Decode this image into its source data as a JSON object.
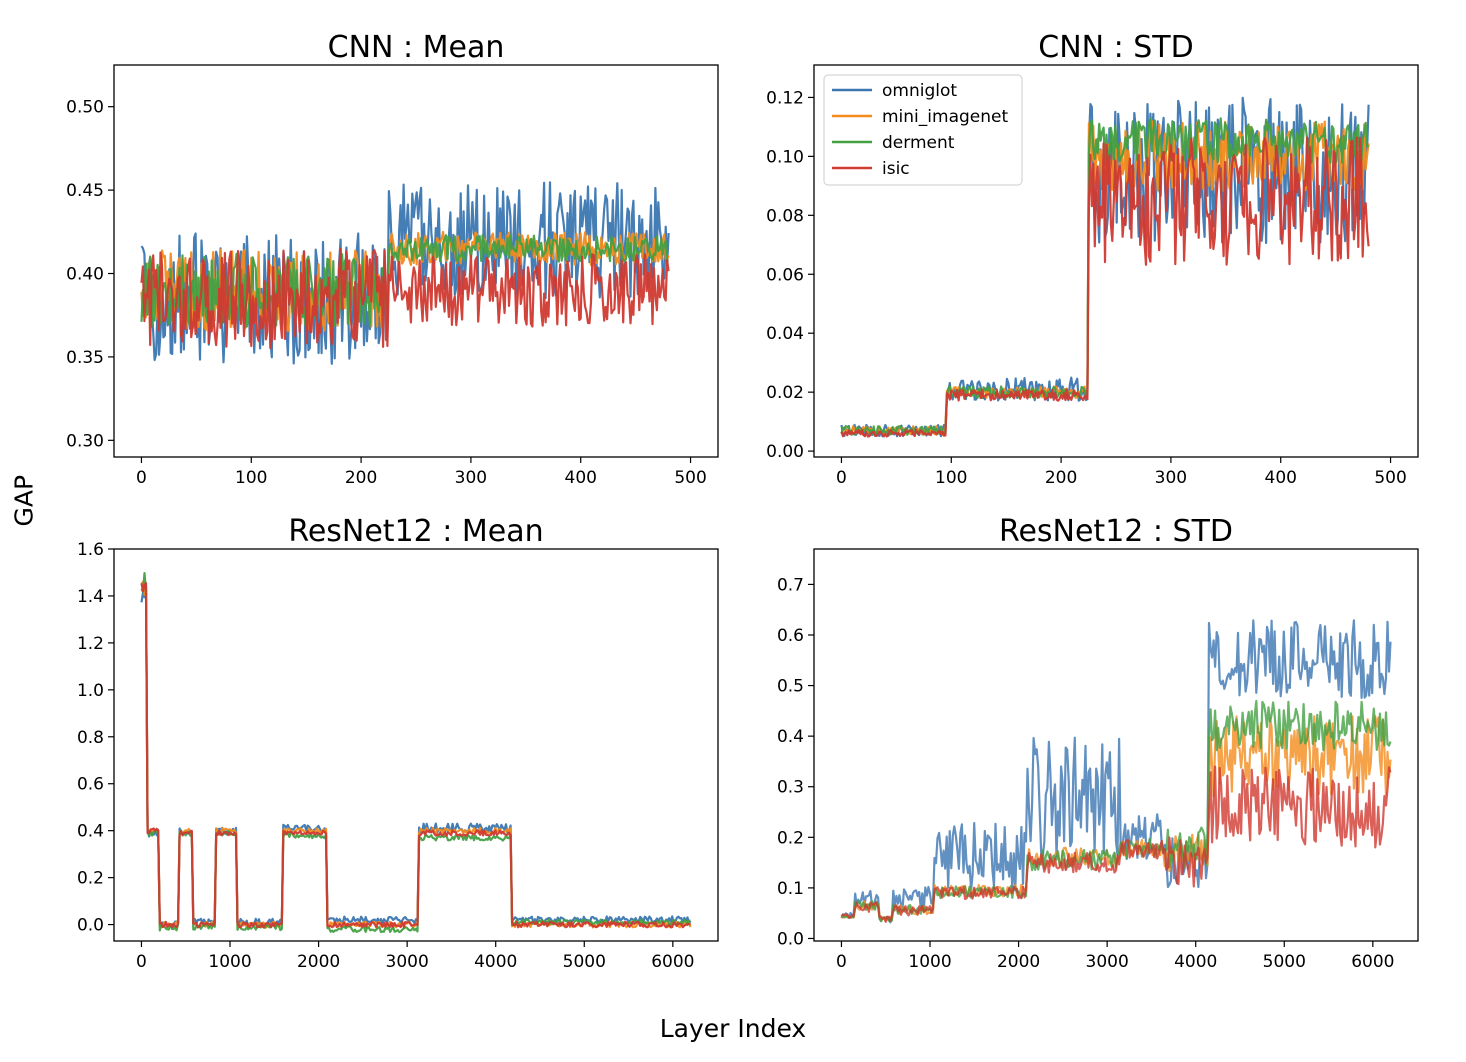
{
  "figure": {
    "ylabel": "GAP",
    "xlabel": "Layer Index"
  },
  "colors": {
    "omniglot": "#3b76b1",
    "mini_imagenet": "#f28b1c",
    "derment": "#43a043",
    "isic": "#d03a30"
  },
  "legend": [
    {
      "name": "omniglot",
      "color": "#3b76b1"
    },
    {
      "name": "mini_imagenet",
      "color": "#f28b1c"
    },
    {
      "name": "derment",
      "color": "#43a043"
    },
    {
      "name": "isic",
      "color": "#d03a30"
    }
  ],
  "chart_data": [
    {
      "type": "line",
      "title": "CNN : Mean",
      "xlim": [
        -25,
        525
      ],
      "ylim": [
        0.29,
        0.525
      ],
      "xticks": [
        0,
        100,
        200,
        300,
        400,
        500
      ],
      "yticks": [
        "0.30",
        "0.35",
        "0.40",
        "0.45",
        "0.50"
      ],
      "ytick_values": [
        0.3,
        0.35,
        0.4,
        0.45,
        0.5
      ],
      "x_max_point": 480,
      "segments": [
        {
          "x_end": 225,
          "means": {
            "omniglot": 0.385,
            "mini_imagenet": 0.39,
            "derment": 0.39,
            "isic": 0.385
          },
          "noise": {
            "omniglot": 0.04,
            "mini_imagenet": 0.025,
            "derment": 0.022,
            "isic": 0.03
          }
        },
        {
          "x_end": 480,
          "means": {
            "omniglot": 0.42,
            "mini_imagenet": 0.415,
            "derment": 0.415,
            "isic": 0.39
          },
          "noise": {
            "omniglot": 0.035,
            "mini_imagenet": 0.01,
            "derment": 0.008,
            "isic": 0.022
          }
        }
      ],
      "legend": false
    },
    {
      "type": "line",
      "title": "CNN : STD",
      "xlim": [
        -25,
        525
      ],
      "ylim": [
        -0.002,
        0.131
      ],
      "xticks": [
        0,
        100,
        200,
        300,
        400,
        500
      ],
      "yticks": [
        "0.00",
        "0.02",
        "0.04",
        "0.06",
        "0.08",
        "0.10",
        "0.12"
      ],
      "ytick_values": [
        0.0,
        0.02,
        0.04,
        0.06,
        0.08,
        0.1,
        0.12
      ],
      "x_max_point": 480,
      "segments": [
        {
          "x_end": 95,
          "means": {
            "omniglot": 0.007,
            "mini_imagenet": 0.007,
            "derment": 0.007,
            "isic": 0.006
          },
          "noise": {
            "omniglot": 0.002,
            "mini_imagenet": 0.0015,
            "derment": 0.0015,
            "isic": 0.0012
          }
        },
        {
          "x_end": 225,
          "means": {
            "omniglot": 0.021,
            "mini_imagenet": 0.02,
            "derment": 0.02,
            "isic": 0.019
          },
          "noise": {
            "omniglot": 0.004,
            "mini_imagenet": 0.002,
            "derment": 0.002,
            "isic": 0.002
          }
        },
        {
          "x_end": 480,
          "means": {
            "omniglot": 0.095,
            "mini_imagenet": 0.1,
            "derment": 0.105,
            "isic": 0.085
          },
          "noise": {
            "omniglot": 0.025,
            "mini_imagenet": 0.012,
            "derment": 0.008,
            "isic": 0.022
          }
        }
      ],
      "legend": true,
      "legend_position": "top-left"
    },
    {
      "type": "line",
      "title": "ResNet12 : Mean",
      "xlim": [
        -310,
        6510
      ],
      "ylim": [
        -0.07,
        1.6
      ],
      "xticks": [
        0,
        1000,
        2000,
        3000,
        4000,
        5000,
        6000
      ],
      "yticks": [
        "0.0",
        "0.2",
        "0.4",
        "0.6",
        "0.8",
        "1.0",
        "1.2",
        "1.4",
        "1.6"
      ],
      "ytick_values": [
        0.0,
        0.2,
        0.4,
        0.6,
        0.8,
        1.0,
        1.2,
        1.4,
        1.6
      ],
      "x_max_point": 6200,
      "segments": [
        {
          "x_end": 60,
          "means": {
            "omniglot": 1.42,
            "mini_imagenet": 1.44,
            "derment": 1.46,
            "isic": 1.43
          },
          "noise": {
            "omniglot": 0.05,
            "mini_imagenet": 0.04,
            "derment": 0.05,
            "isic": 0.04
          }
        },
        {
          "x_end": 200,
          "means": {
            "omniglot": 0.39,
            "mini_imagenet": 0.4,
            "derment": 0.39,
            "isic": 0.4
          },
          "noise": {
            "omniglot": 0.015,
            "mini_imagenet": 0.01,
            "derment": 0.012,
            "isic": 0.01
          }
        },
        {
          "x_end": 430,
          "means": {
            "omniglot": 0.0,
            "mini_imagenet": 0.0,
            "derment": -0.01,
            "isic": 0.0
          },
          "noise": {
            "omniglot": 0.015,
            "mini_imagenet": 0.012,
            "derment": 0.015,
            "isic": 0.012
          }
        },
        {
          "x_end": 580,
          "means": {
            "omniglot": 0.4,
            "mini_imagenet": 0.4,
            "derment": 0.39,
            "isic": 0.39
          },
          "noise": {
            "omniglot": 0.015,
            "mini_imagenet": 0.01,
            "derment": 0.012,
            "isic": 0.01
          }
        },
        {
          "x_end": 830,
          "means": {
            "omniglot": 0.01,
            "mini_imagenet": 0.0,
            "derment": -0.01,
            "isic": 0.0
          },
          "noise": {
            "omniglot": 0.015,
            "mini_imagenet": 0.012,
            "derment": 0.015,
            "isic": 0.012
          }
        },
        {
          "x_end": 1080,
          "means": {
            "omniglot": 0.4,
            "mini_imagenet": 0.4,
            "derment": 0.39,
            "isic": 0.39
          },
          "noise": {
            "omniglot": 0.015,
            "mini_imagenet": 0.01,
            "derment": 0.012,
            "isic": 0.01
          }
        },
        {
          "x_end": 1600,
          "means": {
            "omniglot": 0.01,
            "mini_imagenet": 0.0,
            "derment": -0.01,
            "isic": 0.0
          },
          "noise": {
            "omniglot": 0.015,
            "mini_imagenet": 0.012,
            "derment": 0.015,
            "isic": 0.012
          }
        },
        {
          "x_end": 2100,
          "means": {
            "omniglot": 0.41,
            "mini_imagenet": 0.4,
            "derment": 0.38,
            "isic": 0.39
          },
          "noise": {
            "omniglot": 0.015,
            "mini_imagenet": 0.01,
            "derment": 0.012,
            "isic": 0.01
          }
        },
        {
          "x_end": 3120,
          "means": {
            "omniglot": 0.02,
            "mini_imagenet": 0.0,
            "derment": -0.02,
            "isic": 0.0
          },
          "noise": {
            "omniglot": 0.015,
            "mini_imagenet": 0.012,
            "derment": 0.012,
            "isic": 0.012
          }
        },
        {
          "x_end": 4170,
          "means": {
            "omniglot": 0.41,
            "mini_imagenet": 0.4,
            "derment": 0.37,
            "isic": 0.39
          },
          "noise": {
            "omniglot": 0.02,
            "mini_imagenet": 0.012,
            "derment": 0.012,
            "isic": 0.012
          }
        },
        {
          "x_end": 6200,
          "means": {
            "omniglot": 0.02,
            "mini_imagenet": 0.0,
            "derment": 0.01,
            "isic": 0.0
          },
          "noise": {
            "omniglot": 0.015,
            "mini_imagenet": 0.012,
            "derment": 0.012,
            "isic": 0.012
          }
        }
      ],
      "legend": false
    },
    {
      "type": "line",
      "title": "ResNet12 : STD",
      "xlim": [
        -310,
        6510
      ],
      "ylim": [
        -0.005,
        0.77
      ],
      "xticks": [
        0,
        1000,
        2000,
        3000,
        4000,
        5000,
        6000
      ],
      "yticks": [
        "0.0",
        "0.1",
        "0.2",
        "0.3",
        "0.4",
        "0.5",
        "0.6",
        "0.7"
      ],
      "ytick_values": [
        0.0,
        0.1,
        0.2,
        0.3,
        0.4,
        0.5,
        0.6,
        0.7
      ],
      "x_max_point": 6200,
      "segments": [
        {
          "x_end": 150,
          "means": {
            "omniglot": 0.045,
            "mini_imagenet": 0.045,
            "derment": 0.045,
            "isic": 0.044
          },
          "noise": {
            "omniglot": 0.006,
            "mini_imagenet": 0.004,
            "derment": 0.004,
            "isic": 0.004
          }
        },
        {
          "x_end": 430,
          "means": {
            "omniglot": 0.075,
            "mini_imagenet": 0.065,
            "derment": 0.065,
            "isic": 0.062
          },
          "noise": {
            "omniglot": 0.02,
            "mini_imagenet": 0.01,
            "derment": 0.01,
            "isic": 0.01
          }
        },
        {
          "x_end": 580,
          "means": {
            "omniglot": 0.04,
            "mini_imagenet": 0.04,
            "derment": 0.04,
            "isic": 0.038
          },
          "noise": {
            "omniglot": 0.008,
            "mini_imagenet": 0.006,
            "derment": 0.006,
            "isic": 0.006
          }
        },
        {
          "x_end": 1050,
          "means": {
            "omniglot": 0.08,
            "mini_imagenet": 0.058,
            "derment": 0.058,
            "isic": 0.055
          },
          "noise": {
            "omniglot": 0.025,
            "mini_imagenet": 0.01,
            "derment": 0.01,
            "isic": 0.01
          }
        },
        {
          "x_end": 2100,
          "means": {
            "omniglot": 0.16,
            "mini_imagenet": 0.095,
            "derment": 0.092,
            "isic": 0.09
          },
          "noise": {
            "omniglot": 0.07,
            "mini_imagenet": 0.012,
            "derment": 0.012,
            "isic": 0.012
          }
        },
        {
          "x_end": 3150,
          "means": {
            "omniglot": 0.28,
            "mini_imagenet": 0.16,
            "derment": 0.155,
            "isic": 0.15
          },
          "noise": {
            "omniglot": 0.12,
            "mini_imagenet": 0.02,
            "derment": 0.02,
            "isic": 0.02
          }
        },
        {
          "x_end": 3650,
          "means": {
            "omniglot": 0.2,
            "mini_imagenet": 0.18,
            "derment": 0.178,
            "isic": 0.175
          },
          "noise": {
            "omniglot": 0.05,
            "mini_imagenet": 0.02,
            "derment": 0.02,
            "isic": 0.02
          }
        },
        {
          "x_end": 4150,
          "means": {
            "omniglot": 0.15,
            "mini_imagenet": 0.17,
            "derment": 0.18,
            "isic": 0.15
          },
          "noise": {
            "omniglot": 0.05,
            "mini_imagenet": 0.04,
            "derment": 0.04,
            "isic": 0.05
          }
        },
        {
          "x_end": 6200,
          "means": {
            "omniglot": 0.55,
            "mini_imagenet": 0.36,
            "derment": 0.42,
            "isic": 0.26
          },
          "noise": {
            "omniglot": 0.08,
            "mini_imagenet": 0.08,
            "derment": 0.05,
            "isic": 0.08
          }
        }
      ],
      "legend": false
    }
  ]
}
